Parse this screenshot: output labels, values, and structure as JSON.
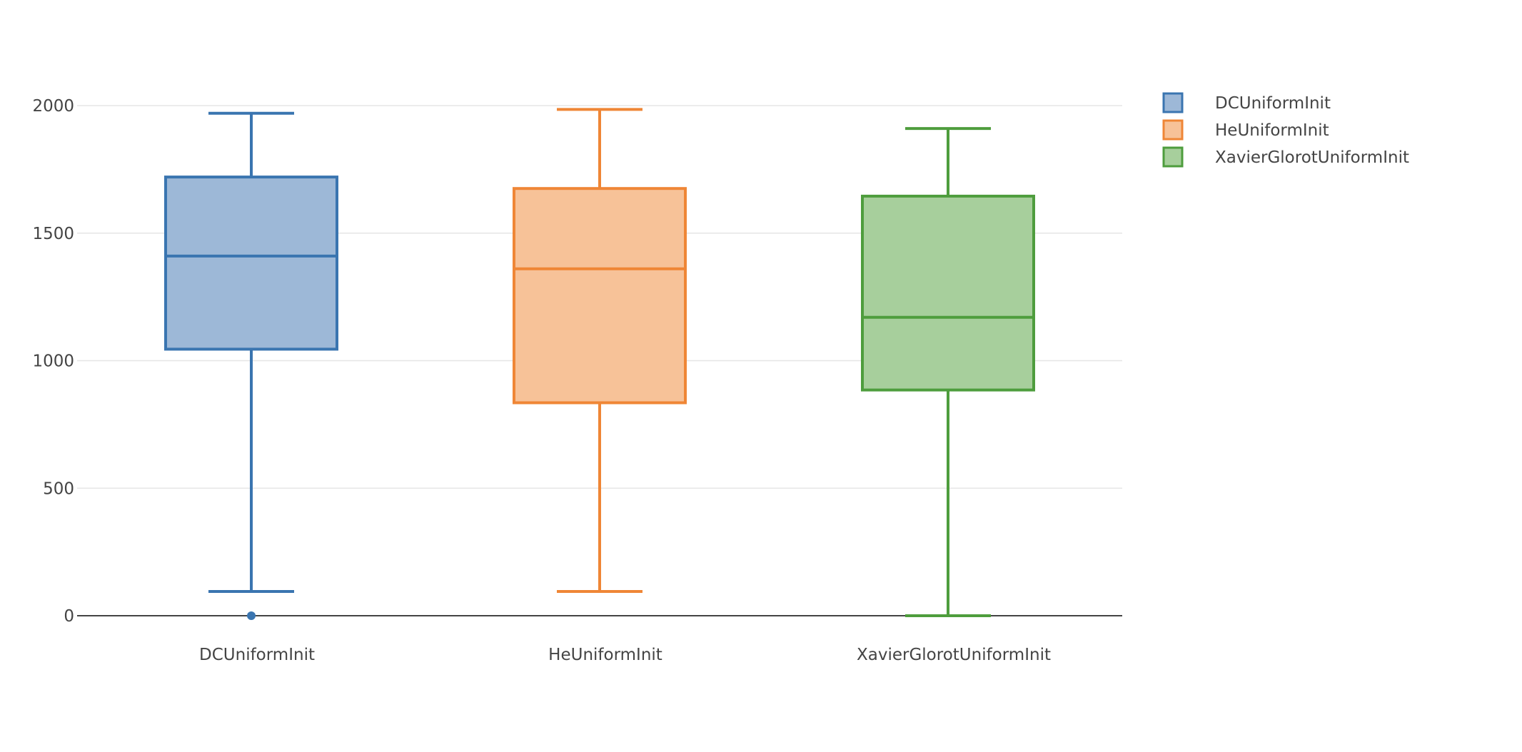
{
  "chart_data": {
    "type": "box",
    "title": "",
    "xlabel": "",
    "ylabel": "",
    "ylim": [
      -140,
      2100
    ],
    "yticks": [
      0,
      500,
      1000,
      1500,
      2000
    ],
    "grid": true,
    "legend_position": "top-right",
    "categories": [
      "DCUniformInit",
      "HeUniformInit",
      "XavierGlorotUniformInit"
    ],
    "series": [
      {
        "name": "DCUniformInit",
        "color": "#3a75b0",
        "fill": "#9db8d7",
        "min": 95,
        "q1": 1045,
        "median": 1410,
        "q3": 1720,
        "max": 1970,
        "outliers": [
          0
        ]
      },
      {
        "name": "HeUniformInit",
        "color": "#ef8636",
        "fill": "#f7c298",
        "min": 95,
        "q1": 835,
        "median": 1360,
        "q3": 1675,
        "max": 1985,
        "outliers": []
      },
      {
        "name": "XavierGlorotUniformInit",
        "color": "#4e9d3d",
        "fill": "#a7cf9c",
        "min": 0,
        "q1": 885,
        "median": 1170,
        "q3": 1645,
        "max": 1910,
        "outliers": []
      }
    ]
  }
}
